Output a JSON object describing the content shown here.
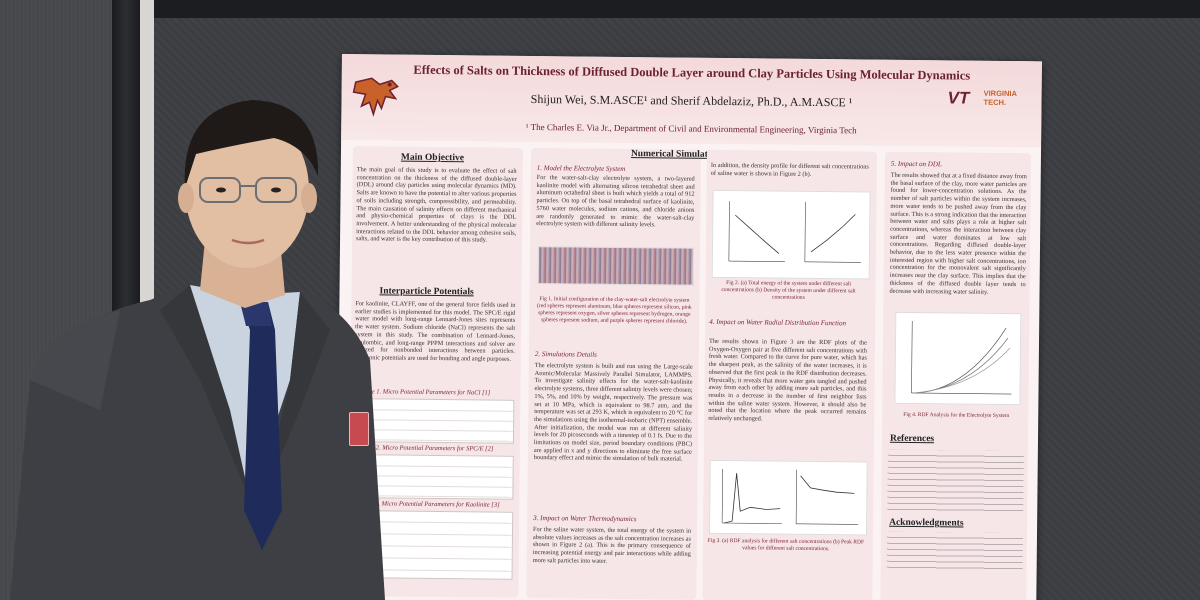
{
  "poster": {
    "title": "Effects of Salts on Thickness of Diffused Double Layer around Clay Particles Using Molecular Dynamics",
    "authors": "Shijun Wei, S.M.ASCE¹ and Sherif Abdelaziz, Ph.D., A.M.ASCE ¹",
    "affiliation": "¹ The Charles E. Via Jr., Department of Civil and Environmental Engineering, Virginia Tech",
    "logo_mark": "VT",
    "logo_text_1": "VIRGINIA",
    "logo_text_2": "TECH.",
    "sections": {
      "main_objective": {
        "title": "Main Objective",
        "text": "The main goal of this study is to evaluate the effect of salt concentration on the thickness of the diffused double-layer (DDL) around clay particles using molecular dynamics (MD). Salts are known to have the potential to alter various properties of soils including strength, compressibility, and permeability. The main causation of salinity effects on different mechanical and physio-chemical properties of clays is the DDL involvement. A better understanding of the physical molecular interactions related to the DDL behavior among cohesive soils, salts, and water is the key contribution of this study."
      },
      "interparticle": {
        "title": "Interparticle Potentials",
        "text": "For kaolinite, CLAYFF, one of the general force fields used in earlier studies is implemented for this model. The SPC/E rigid water model with long-range Lennard-Jones sites represents the water system. Sodium chloride (NaCl) represents the salt system in this study. The combination of Lennard-Jones, coulombic, and long-range PPPM interactions and solver are utilized for nonbonded interactions between particles. Harmonic potentials are used for bonding and angle purposes."
      },
      "table1_title": "Table 1. Micro Potential Parameters for NaCl [1]",
      "table2_title": "Table 2. Micro Potential Parameters for SPC/E [2]",
      "table3_title": "Table 3. Micro Potential Parameters for Kaolinite [3]",
      "numerical": {
        "title": "Numerical Simulations",
        "sub1": "1. Model the Electrolyte System",
        "text1": "For the water-salt-clay electrolyte system, a two-layered kaolinite model with alternating silicon tetrahedral sheet and aluminum octahedral sheet is built which yields a total of 912 particles. On top of the basal tetrahedral surface of kaolinite, 5760 water molecules, sodium cations, and chloride anions are randomly generated to mimic the water-salt-clay electrolyte system with different salinity levels.",
        "fig1_caption": "Fig 1. Initial configuration of the clay-water-salt electrolyte system (red spheres represent aluminum, blue spheres represent silicon, pink spheres represent oxygen, silver spheres represent hydrogen, orange spheres represent sodium, and purple spheres represent chloride).",
        "sub2": "2. Simulations Details",
        "text2": "The electrolyte system is built and run using the Large-scale Atomic/Molecular Massively Parallel Simulator, LAMMPS. To investigate salinity effects for the water-salt-kaolinite electrolyte systems, three different salinity levels were chosen; 1%, 5%, and 10% by weight, respectively. The pressure was set at 10 MPa, which is equivalent to 98.7 atm, and the temperature was set at 293 K, which is equivalent to 20 °C for the simulations using the isothermal-isobaric (NPT) ensemble. After initialization, the model was run at different salinity levels for 20 picoseconds with a timestep of 0.1 fs. Due to the limitations on model size, period boundary conditions (PBC) are applied in x and y directions to eliminate the free surface boundary effect and mimic the simulation of bulk material.",
        "sub3": "3. Impact on Water Thermodynamics",
        "text3": "For the saline water system, the total energy of the system in absolute values increases as the salt concentration increases as shown in Figure 2 (a). This is the primary consequence of increasing potential energy and pair interactions while adding more salt particles into water."
      },
      "middle": {
        "text_top": "In addition, the density profile for different salt concentrations of saline water is shown in Figure 2 (b).",
        "fig2_caption": "Fig 2. (a) Total energy of the system under different salt concentrations (b) Density of the system under different salt concentrations",
        "sub4": "4. Impact on Water Radial Distribution Function",
        "text4": "The results shown in Figure 3 are the RDF plots of the Oxygen-Oxygen pair at five different salt concentrations with fresh water. Compared to the curve for pure water, which has the sharpest peak, as the salinity of the water increases, it is observed that the first peak in the RDF distribution decreases. Physically, it reveals that more water gets tangled and pushed away from each other by adding more salt particles, and this results in a decrease in the number of first neighbor lists within the saline water system. However, it should also be noted that the location where the peak occurred remains relatively unchanged.",
        "fig3_caption": "Fig 3. (a) RDF analysis for different salt concentrations (b) Peak RDF values for different salt concentrations."
      },
      "right": {
        "sub5": "5. Impact on DDL",
        "text5": "The results showed that at a fixed distance away from the basal surface of the clay, more water particles are found for lower-concentration solutions. As the number of salt particles within the system increases, more water tends to be pushed away from the clay surface. This is a strong indication that the interaction between water and salts plays a role at higher salt concentrations, whereas the interaction between clay surface and water dominates at low salt concentrations. Regarding diffused double-layer behavior, due to the less water presence within the interested region with higher salt concentrations, ion concentration for the monovalent salt significantly increases near the clay surface. This implies that the thickness of the diffused double layer tends to decrease with increasing water salinity.",
        "fig4_caption": "Fig 4. RDF Analysis for the Electrolyte System",
        "references_title": "References",
        "ack_title": "Acknowledgments"
      }
    }
  },
  "colors": {
    "poster_bg": "#fbf3f3",
    "maroon": "#6b2130",
    "orange": "#c8612a",
    "suit": "#3c3e42",
    "tie": "#1f2b5a",
    "badge": "#c74a50"
  }
}
